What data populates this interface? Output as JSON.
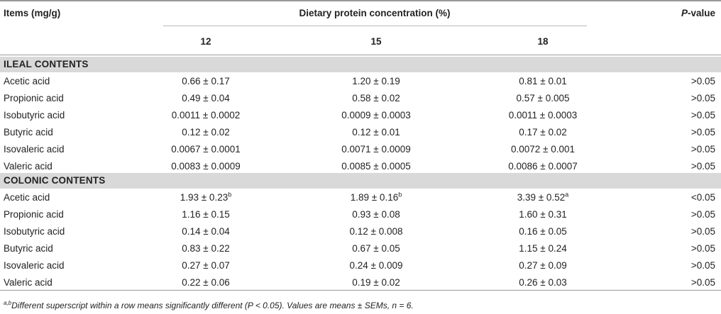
{
  "header": {
    "items_label": "Items (mg/g)",
    "group_label": "Dietary protein concentration (%)",
    "p_label_italic": "P",
    "p_label_rest": "-value",
    "levels": [
      "12",
      "15",
      "18"
    ]
  },
  "sections": [
    {
      "title": "ILEAL CONTENTS",
      "rows": [
        {
          "item": "Acetic acid",
          "v12": "0.66 ± 0.17",
          "s12": "",
          "v15": "1.20 ± 0.19",
          "s15": "",
          "v18": "0.81 ± 0.01",
          "s18": "",
          "p": ">0.05"
        },
        {
          "item": "Propionic acid",
          "v12": "0.49 ± 0.04",
          "s12": "",
          "v15": "0.58 ± 0.02",
          "s15": "",
          "v18": "0.57 ± 0.005",
          "s18": "",
          "p": ">0.05"
        },
        {
          "item": "Isobutyric acid",
          "v12": "0.0011 ± 0.0002",
          "s12": "",
          "v15": "0.0009 ± 0.0003",
          "s15": "",
          "v18": "0.0011 ± 0.0003",
          "s18": "",
          "p": ">0.05"
        },
        {
          "item": "Butyric acid",
          "v12": "0.12 ± 0.02",
          "s12": "",
          "v15": "0.12 ± 0.01",
          "s15": "",
          "v18": "0.17 ± 0.02",
          "s18": "",
          "p": ">0.05"
        },
        {
          "item": "Isovaleric acid",
          "v12": "0.0067 ± 0.0001",
          "s12": "",
          "v15": "0.0071 ± 0.0009",
          "s15": "",
          "v18": "0.0072 ± 0.001",
          "s18": "",
          "p": ">0.05"
        },
        {
          "item": "Valeric acid",
          "v12": "0.0083 ± 0.0009",
          "s12": "",
          "v15": "0.0085 ± 0.0005",
          "s15": "",
          "v18": "0.0086 ± 0.0007",
          "s18": "",
          "p": ">0.05"
        }
      ]
    },
    {
      "title": "COLONIC CONTENTS",
      "rows": [
        {
          "item": "Acetic acid",
          "v12": "1.93 ± 0.23",
          "s12": "b",
          "v15": "1.89 ± 0.16",
          "s15": "b",
          "v18": "3.39 ± 0.52",
          "s18": "a",
          "p": "<0.05"
        },
        {
          "item": "Propionic acid",
          "v12": "1.16 ± 0.15",
          "s12": "",
          "v15": "0.93 ± 0.08",
          "s15": "",
          "v18": "1.60 ± 0.31",
          "s18": "",
          "p": ">0.05"
        },
        {
          "item": "Isobutyric acid",
          "v12": "0.14 ± 0.04",
          "s12": "",
          "v15": "0.12 ± 0.008",
          "s15": "",
          "v18": "0.16 ± 0.05",
          "s18": "",
          "p": ">0.05"
        },
        {
          "item": "Butyric acid",
          "v12": "0.83 ± 0.22",
          "s12": "",
          "v15": "0.67 ± 0.05",
          "s15": "",
          "v18": "1.15 ± 0.24",
          "s18": "",
          "p": ">0.05"
        },
        {
          "item": "Isovaleric acid",
          "v12": "0.27 ± 0.07",
          "s12": "",
          "v15": "0.24 ± 0.009",
          "s15": "",
          "v18": "0.27 ± 0.09",
          "s18": "",
          "p": ">0.05"
        },
        {
          "item": "Valeric acid",
          "v12": "0.22 ± 0.06",
          "s12": "",
          "v15": "0.19 ± 0.02",
          "s15": "",
          "v18": "0.26 ± 0.03",
          "s18": "",
          "p": ">0.05"
        }
      ]
    }
  ],
  "footnote": {
    "marker": "a,b",
    "text": "Different superscript within a row means significantly different (P < 0.05). Values are means ± SEMs, n = 6."
  }
}
